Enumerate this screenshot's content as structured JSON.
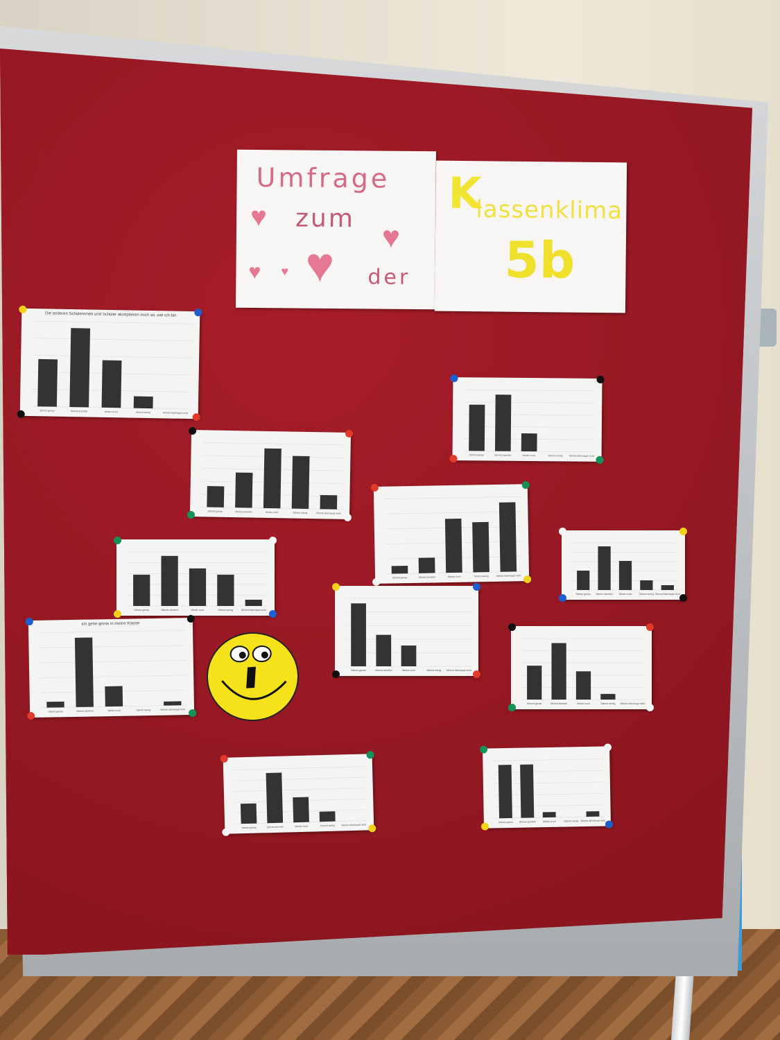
{
  "scene": {
    "board_color": "#9c1a25",
    "paper_color": "#f4f4f2",
    "bar_color": "#333333"
  },
  "posters": {
    "left": {
      "line1": "Umfrage",
      "line2": "zum",
      "line3": "der"
    },
    "right": {
      "line1": "K",
      "line1b": "lassenklima",
      "line2": "5b"
    }
  },
  "answer_categories": [
    "Stimmt genau",
    "Stimmt ziemlich",
    "Weder noch",
    "Stimmt wenig",
    "Stimmt überhaupt nicht"
  ],
  "chart_data": [
    {
      "type": "bar",
      "title": "Die anderen Schülerinnen und Schüler akzeptieren mich so, wie ich bin",
      "values": [
        6,
        10,
        6,
        1.5,
        0
      ]
    },
    {
      "type": "bar",
      "title": "",
      "values": [
        9,
        11,
        3.5,
        0,
        0
      ]
    },
    {
      "type": "bar",
      "title": "",
      "values": [
        3,
        5,
        8.5,
        7.5,
        2
      ]
    },
    {
      "type": "bar",
      "title": "",
      "values": [
        1,
        2,
        7,
        6.5,
        9
      ]
    },
    {
      "type": "bar",
      "title": "",
      "values": [
        5,
        8,
        6,
        5,
        1
      ]
    },
    {
      "type": "bar",
      "title": "",
      "values": [
        2,
        4.5,
        3,
        1,
        0.5
      ]
    },
    {
      "type": "bar",
      "title": "",
      "values": [
        10,
        5,
        3.3,
        0,
        0
      ]
    },
    {
      "type": "bar",
      "title": "Ich gehe gerne in meine Klasse",
      "values": [
        1,
        12,
        3.5,
        0,
        0.7
      ]
    },
    {
      "type": "bar",
      "title": "",
      "values": [
        3,
        5,
        2.5,
        0.5,
        0
      ]
    },
    {
      "type": "bar",
      "title": "",
      "values": [
        2,
        5,
        2.5,
        1,
        0
      ]
    },
    {
      "type": "bar",
      "title": "",
      "values": [
        10,
        10,
        1,
        0,
        1
      ]
    }
  ]
}
